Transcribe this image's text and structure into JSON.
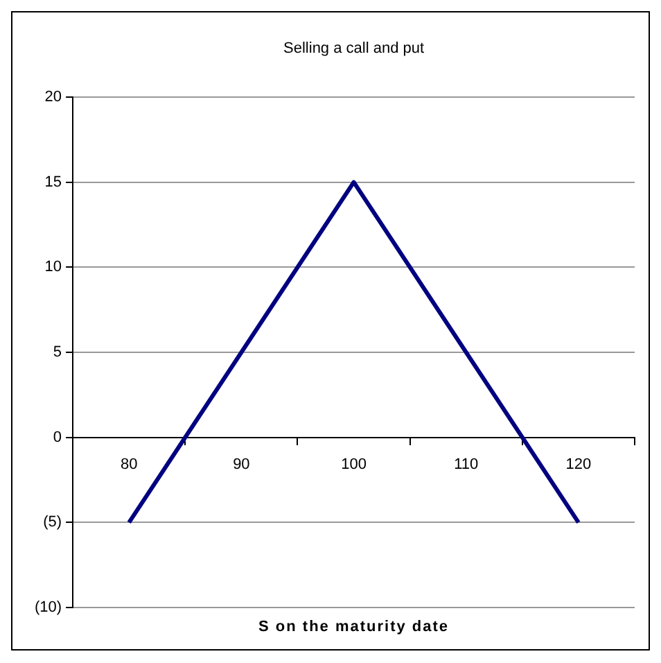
{
  "chart_data": {
    "type": "line",
    "title": "Selling a call and put",
    "xlabel": "S on the maturity date",
    "categories": [
      "80",
      "90",
      "100",
      "110",
      "120"
    ],
    "series": [
      {
        "color": "#000080",
        "values": [
          -5,
          5,
          15,
          5,
          -5
        ]
      }
    ],
    "ylim": [
      -10,
      20
    ],
    "yticks": [
      {
        "value": -10,
        "label": "(10)"
      },
      {
        "value": -5,
        "label": "(5)"
      },
      0,
      5,
      10,
      15,
      20
    ],
    "grid": "y",
    "legend": false,
    "marker": "none",
    "line_style": "solid"
  }
}
